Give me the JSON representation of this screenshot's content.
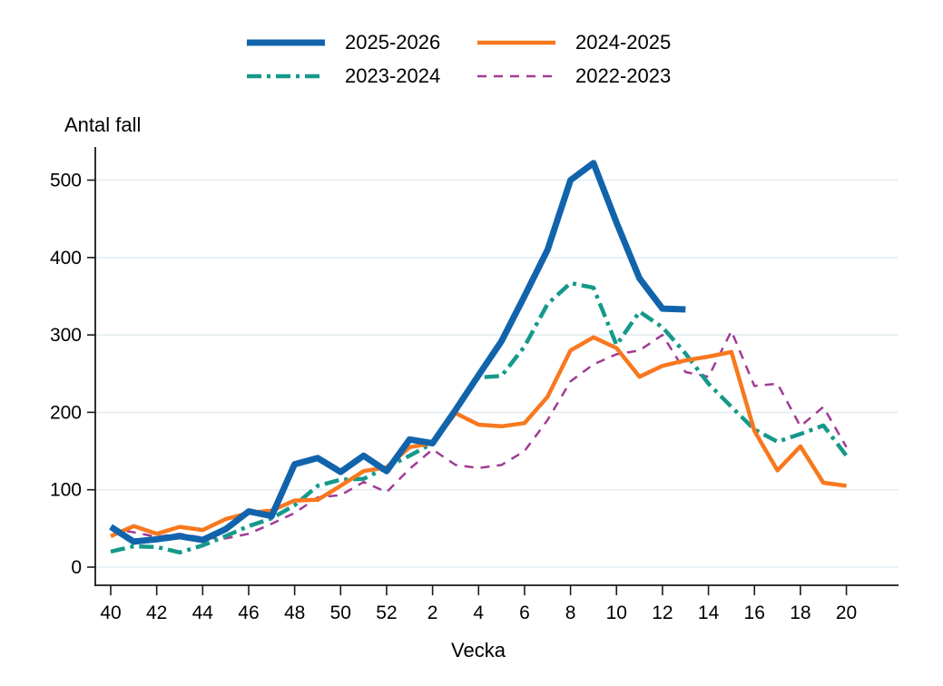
{
  "page_bg": "#ffffff",
  "legend": [
    {
      "label": "2025-2026",
      "color": "#1164ab",
      "style": "solid_thick"
    },
    {
      "label": "2024-2025",
      "color": "#f8781f",
      "style": "solid"
    },
    {
      "label": "2023-2024",
      "color": "#14998a",
      "style": "dashdot"
    },
    {
      "label": "2022-2023",
      "color": "#a23a95",
      "style": "dashed"
    }
  ],
  "axis_color": "#1a1a1a",
  "grid_color": "#e4edf3",
  "chart_data": {
    "type": "line",
    "title": "Antal fall",
    "xlabel": "Vecka",
    "ylabel": "Antal fall",
    "ylim": [
      0,
      540
    ],
    "yticks": [
      0,
      100,
      200,
      300,
      400,
      500
    ],
    "ytick_labels": [
      "0",
      "100",
      "200",
      "300",
      "400",
      "500"
    ],
    "grid": "horizontal",
    "legend_position": "top",
    "x_weeks": [
      40,
      41,
      42,
      43,
      44,
      45,
      46,
      47,
      48,
      49,
      50,
      51,
      52,
      1,
      2,
      3,
      4,
      5,
      6,
      7,
      8,
      9,
      10,
      11,
      12,
      13,
      14,
      15,
      16,
      17,
      18,
      19,
      20
    ],
    "x_tick_labels": [
      "40",
      "42",
      "44",
      "46",
      "48",
      "50",
      "52",
      "2",
      "4",
      "6",
      "8",
      "10",
      "12",
      "14",
      "16",
      "18",
      "20"
    ],
    "series": [
      {
        "name": "2022-2023",
        "color": "#a23a95",
        "style": "dashed",
        "values": [
          50,
          45,
          39,
          43,
          38,
          37,
          43,
          56,
          70,
          90,
          93,
          110,
          97,
          127,
          152,
          132,
          128,
          132,
          150,
          190,
          240,
          262,
          275,
          280,
          300,
          252,
          246,
          305,
          234,
          237,
          182,
          207,
          155
        ]
      },
      {
        "name": "2023-2024",
        "color": "#14998a",
        "style": "dashdot",
        "values": [
          20,
          27,
          26,
          19,
          28,
          40,
          53,
          63,
          80,
          105,
          113,
          114,
          129,
          144,
          160,
          205,
          245,
          247,
          285,
          340,
          367,
          361,
          287,
          330,
          310,
          276,
          237,
          207,
          178,
          162,
          172,
          183,
          144
        ]
      },
      {
        "name": "2024-2025",
        "color": "#f8781f",
        "style": "solid",
        "values": [
          40,
          53,
          43,
          52,
          48,
          62,
          70,
          73,
          86,
          87,
          105,
          124,
          129,
          155,
          160,
          199,
          184,
          182,
          186,
          220,
          280,
          297,
          283,
          246,
          260,
          267,
          272,
          278,
          176,
          125,
          156,
          109,
          105
        ]
      },
      {
        "name": "2025-2026",
        "color": "#1164ab",
        "style": "solid_thick",
        "values": [
          52,
          33,
          36,
          40,
          35,
          49,
          72,
          66,
          133,
          141,
          123,
          144,
          124,
          165,
          160,
          203,
          248,
          292,
          350,
          410,
          500,
          522,
          445,
          373,
          334,
          333
        ]
      }
    ]
  }
}
